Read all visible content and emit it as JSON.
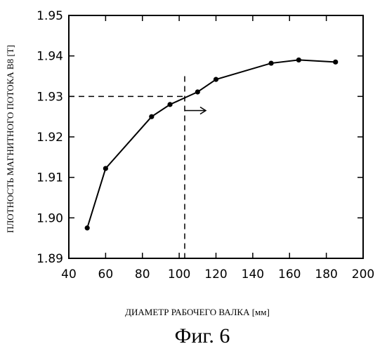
{
  "chart_data": {
    "type": "line",
    "xlabel": "ДИАМЕТР РАБОЧЕГО ВАЛКА [мм]",
    "ylabel": "ПЛОТНОСТЬ МАГНИТНОГО ПОТОКА B8 [T]",
    "caption": "Фиг. 6",
    "xlim": [
      40,
      200
    ],
    "ylim": [
      1.89,
      1.95
    ],
    "x_ticks": [
      "40",
      "60",
      "80",
      "100",
      "120",
      "140",
      "160",
      "180",
      "200"
    ],
    "y_ticks": [
      "1.95",
      "1.94",
      "1.93",
      "1.92",
      "1.91",
      "1.90",
      "1.89"
    ],
    "x": [
      50,
      60,
      85,
      95,
      110,
      120,
      150,
      165,
      185
    ],
    "y": [
      1.8975,
      1.9122,
      1.925,
      1.928,
      1.9311,
      1.9342,
      1.9382,
      1.939,
      1.9385
    ],
    "reference_x": 103,
    "reference_y": 1.93,
    "arrow_direction": "right",
    "grid": false,
    "colors": {
      "line": "#000000",
      "marker": "#000000"
    }
  }
}
